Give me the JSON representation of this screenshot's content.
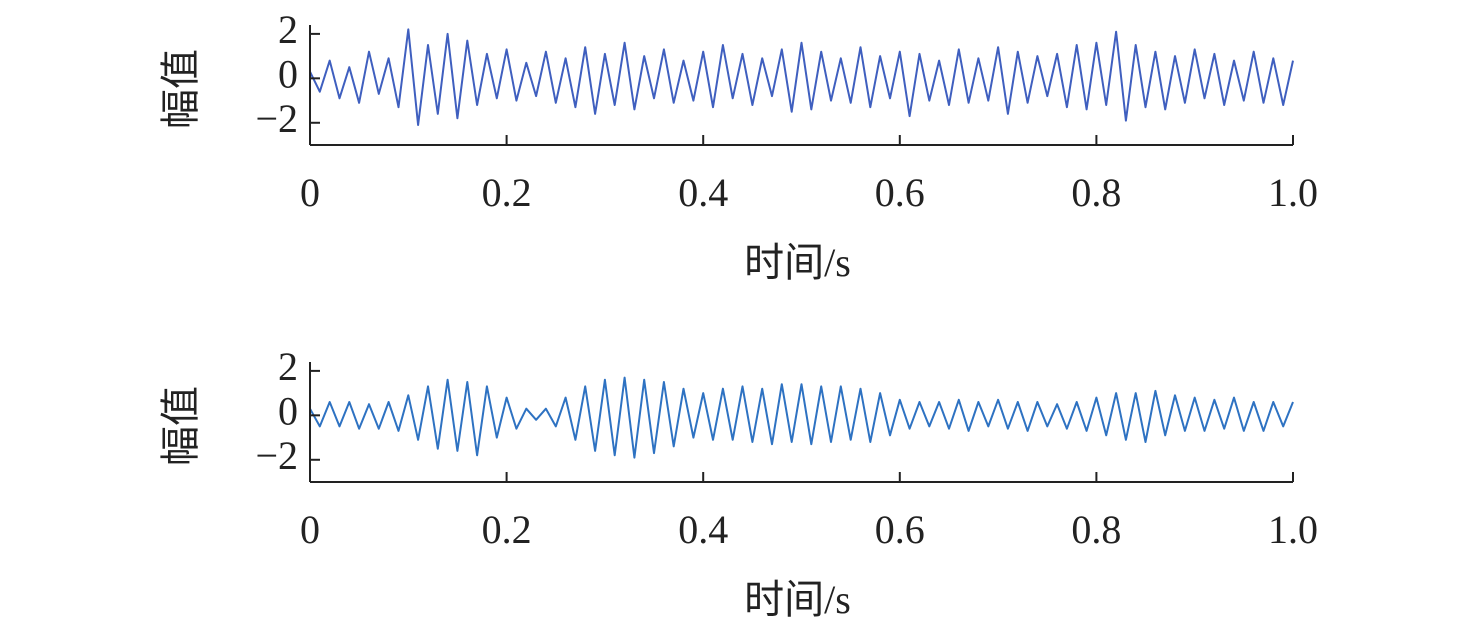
{
  "chart_data": [
    {
      "type": "line",
      "xlabel": "时间/s",
      "ylabel": "幅值",
      "xlim": [
        0,
        1
      ],
      "ylim": [
        -3,
        2.4
      ],
      "xticks": [
        0,
        0.2,
        0.4,
        0.6,
        0.8,
        {
          "value": 1,
          "label": "1.0"
        }
      ],
      "yticks": [
        {
          "value": -2,
          "label": "−2"
        },
        0,
        2
      ],
      "x": [
        0,
        0.01,
        0.02,
        0.03,
        0.04,
        0.05,
        0.06,
        0.07,
        0.08,
        0.09,
        0.1,
        0.11,
        0.12,
        0.13,
        0.14,
        0.15,
        0.16,
        0.17,
        0.18,
        0.19,
        0.2,
        0.21,
        0.22,
        0.23,
        0.24,
        0.25,
        0.26,
        0.27,
        0.28,
        0.29,
        0.3,
        0.31,
        0.32,
        0.33,
        0.34,
        0.35,
        0.36,
        0.37,
        0.38,
        0.39,
        0.4,
        0.41,
        0.42,
        0.43,
        0.44,
        0.45,
        0.46,
        0.47,
        0.48,
        0.49,
        0.5,
        0.51,
        0.52,
        0.53,
        0.54,
        0.55,
        0.56,
        0.57,
        0.58,
        0.59,
        0.6,
        0.61,
        0.62,
        0.63,
        0.64,
        0.65,
        0.66,
        0.67,
        0.68,
        0.69,
        0.7,
        0.71,
        0.72,
        0.73,
        0.74,
        0.75,
        0.76,
        0.77,
        0.78,
        0.79,
        0.8,
        0.81,
        0.82,
        0.83,
        0.84,
        0.85,
        0.86,
        0.87,
        0.88,
        0.89,
        0.9,
        0.91,
        0.92,
        0.93,
        0.94,
        0.95,
        0.96,
        0.97,
        0.98,
        0.99,
        1
      ],
      "series": [
        {
          "color": "#3f5fbf",
          "values": [
            0.3,
            -0.6,
            0.8,
            -0.9,
            0.5,
            -1.1,
            1.2,
            -0.7,
            0.9,
            -1.3,
            2.2,
            -2.1,
            1.5,
            -1.6,
            2.0,
            -1.8,
            1.7,
            -1.2,
            1.1,
            -0.9,
            1.3,
            -1.0,
            0.7,
            -0.8,
            1.2,
            -1.1,
            0.9,
            -1.3,
            1.4,
            -1.6,
            1.1,
            -1.2,
            1.6,
            -1.4,
            1.0,
            -0.9,
            1.3,
            -1.1,
            0.8,
            -1.0,
            1.2,
            -1.3,
            1.5,
            -0.9,
            1.1,
            -1.2,
            0.9,
            -0.8,
            1.3,
            -1.5,
            1.6,
            -1.4,
            1.2,
            -1.0,
            0.9,
            -1.1,
            1.4,
            -1.3,
            1.0,
            -0.9,
            1.2,
            -1.7,
            1.1,
            -1.0,
            0.8,
            -1.2,
            1.3,
            -1.1,
            0.9,
            -1.0,
            1.4,
            -1.6,
            1.2,
            -1.1,
            1.0,
            -0.8,
            1.1,
            -1.3,
            1.5,
            -1.4,
            1.6,
            -1.2,
            2.1,
            -1.9,
            1.5,
            -1.3,
            1.2,
            -1.4,
            1.0,
            -1.1,
            1.3,
            -0.9,
            1.1,
            -1.2,
            0.8,
            -1.0,
            1.2,
            -1.1,
            0.9,
            -1.2,
            0.8
          ]
        }
      ]
    },
    {
      "type": "line",
      "xlabel": "时间/s",
      "ylabel": "幅值",
      "xlim": [
        0,
        1
      ],
      "ylim": [
        -3,
        2.4
      ],
      "xticks": [
        0,
        0.2,
        0.4,
        0.6,
        0.8,
        {
          "value": 1,
          "label": "1.0"
        }
      ],
      "yticks": [
        {
          "value": -2,
          "label": "−2"
        },
        0,
        2
      ],
      "x": [
        0,
        0.01,
        0.02,
        0.03,
        0.04,
        0.05,
        0.06,
        0.07,
        0.08,
        0.09,
        0.1,
        0.11,
        0.12,
        0.13,
        0.14,
        0.15,
        0.16,
        0.17,
        0.18,
        0.19,
        0.2,
        0.21,
        0.22,
        0.23,
        0.24,
        0.25,
        0.26,
        0.27,
        0.28,
        0.29,
        0.3,
        0.31,
        0.32,
        0.33,
        0.34,
        0.35,
        0.36,
        0.37,
        0.38,
        0.39,
        0.4,
        0.41,
        0.42,
        0.43,
        0.44,
        0.45,
        0.46,
        0.47,
        0.48,
        0.49,
        0.5,
        0.51,
        0.52,
        0.53,
        0.54,
        0.55,
        0.56,
        0.57,
        0.58,
        0.59,
        0.6,
        0.61,
        0.62,
        0.63,
        0.64,
        0.65,
        0.66,
        0.67,
        0.68,
        0.69,
        0.7,
        0.71,
        0.72,
        0.73,
        0.74,
        0.75,
        0.76,
        0.77,
        0.78,
        0.79,
        0.8,
        0.81,
        0.82,
        0.83,
        0.84,
        0.85,
        0.86,
        0.87,
        0.88,
        0.89,
        0.9,
        0.91,
        0.92,
        0.93,
        0.94,
        0.95,
        0.96,
        0.97,
        0.98,
        0.99,
        1
      ],
      "series": [
        {
          "color": "#2e72c2",
          "values": [
            0.3,
            -0.5,
            0.6,
            -0.5,
            0.6,
            -0.6,
            0.5,
            -0.6,
            0.6,
            -0.7,
            0.9,
            -1.1,
            1.3,
            -1.5,
            1.6,
            -1.6,
            1.5,
            -1.8,
            1.3,
            -1.0,
            0.8,
            -0.6,
            0.3,
            -0.2,
            0.3,
            -0.5,
            0.8,
            -1.1,
            1.3,
            -1.6,
            1.6,
            -1.8,
            1.7,
            -1.9,
            1.6,
            -1.7,
            1.5,
            -1.4,
            1.2,
            -1.0,
            1.0,
            -1.1,
            1.2,
            -1.1,
            1.3,
            -1.2,
            1.2,
            -1.3,
            1.4,
            -1.2,
            1.4,
            -1.3,
            1.3,
            -1.2,
            1.3,
            -1.1,
            1.2,
            -1.2,
            1.0,
            -0.9,
            0.7,
            -0.6,
            0.6,
            -0.5,
            0.6,
            -0.6,
            0.7,
            -0.7,
            0.6,
            -0.5,
            0.7,
            -0.6,
            0.6,
            -0.7,
            0.6,
            -0.5,
            0.5,
            -0.6,
            0.6,
            -0.7,
            0.8,
            -0.9,
            1.0,
            -1.1,
            1.0,
            -1.2,
            1.1,
            -0.9,
            0.9,
            -0.7,
            0.8,
            -0.7,
            0.7,
            -0.6,
            0.8,
            -0.7,
            0.6,
            -0.7,
            0.6,
            -0.5,
            0.6
          ]
        }
      ]
    }
  ]
}
